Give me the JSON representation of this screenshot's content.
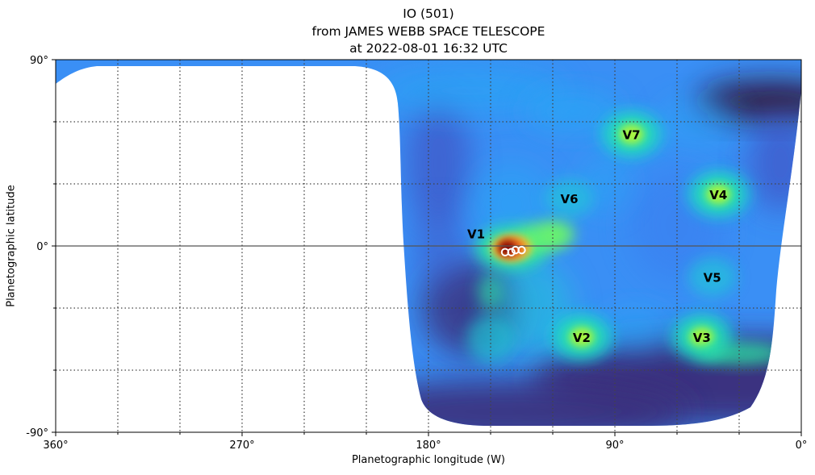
{
  "chart_data": {
    "type": "heatmap",
    "title": [
      "IO (501)",
      "from JAMES WEBB SPACE TELESCOPE",
      "at 2022-08-01 16:32 UTC"
    ],
    "xlabel": "Planetographic longitude (W)",
    "ylabel": "Planetographic latitude",
    "xlim": [
      360,
      0
    ],
    "ylim": [
      -90,
      90
    ],
    "x_ticks_labeled": [
      {
        "value": 360,
        "label": "360°"
      },
      {
        "value": 270,
        "label": "270°"
      },
      {
        "value": 180,
        "label": "180°"
      },
      {
        "value": 90,
        "label": "90°"
      },
      {
        "value": 0,
        "label": "0°"
      }
    ],
    "x_minor_ticks": [
      330,
      300,
      240,
      210,
      150,
      120,
      60,
      30
    ],
    "y_ticks_labeled": [
      {
        "value": 90,
        "label": "90°"
      },
      {
        "value": 0,
        "label": "0°"
      },
      {
        "value": -90,
        "label": "-90°"
      }
    ],
    "y_minor_ticks": [
      60,
      30,
      -30,
      -60
    ],
    "grid": "dotted",
    "equator_line": true,
    "colormap": "turbo",
    "missing_region": "longitudes 360° to ~190° in the northern / mid latitudes (off-disc)",
    "hotspots": [
      {
        "label": "V1",
        "lon": 140,
        "lat": -1,
        "intensity": 1.0,
        "label_lon": 157,
        "label_lat": 6
      },
      {
        "label": "V2",
        "lon": 106,
        "lat": -44,
        "intensity": 0.55,
        "label_lon": 106,
        "label_lat": -44
      },
      {
        "label": "V3",
        "lon": 48,
        "lat": -44,
        "intensity": 0.55,
        "label_lon": 48,
        "label_lat": -44
      },
      {
        "label": "V4",
        "lon": 40,
        "lat": 25,
        "intensity": 0.55,
        "label_lon": 40,
        "label_lat": 25
      },
      {
        "label": "V5",
        "lon": 43,
        "lat": -15,
        "intensity": 0.15,
        "label_lon": 43,
        "label_lat": -15
      },
      {
        "label": "V6",
        "lon": 112,
        "lat": 23,
        "intensity": 0.2,
        "label_lon": 112,
        "label_lat": 23
      },
      {
        "label": "V7",
        "lon": 82,
        "lat": 54,
        "intensity": 0.5,
        "label_lon": 82,
        "label_lat": 54
      }
    ],
    "markers": [
      {
        "lon": 143,
        "lat": -3
      },
      {
        "lon": 140,
        "lat": -3
      },
      {
        "lon": 138,
        "lat": -2
      },
      {
        "lon": 135,
        "lat": -2
      }
    ]
  }
}
